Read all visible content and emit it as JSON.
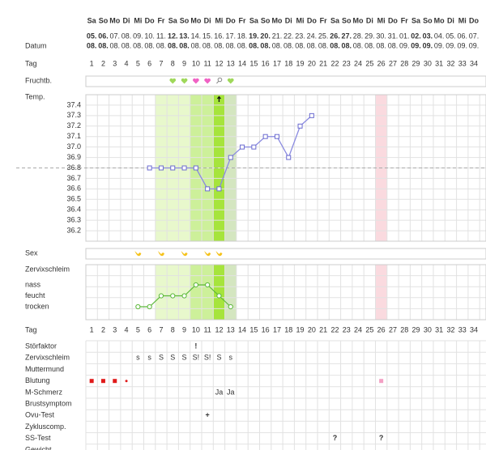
{
  "weekdays": [
    "Sa",
    "So",
    "Mo",
    "Di",
    "Mi",
    "Do",
    "Fr",
    "Sa",
    "So",
    "Mo",
    "Di",
    "Mi",
    "Do",
    "Fr",
    "Sa",
    "So",
    "Mo",
    "Di",
    "Mi",
    "Do",
    "Fr",
    "Sa",
    "So",
    "Mo",
    "Di",
    "Mi",
    "Do",
    "Fr",
    "Sa",
    "So",
    "Mo",
    "Di",
    "Mi",
    "Do"
  ],
  "date_days": [
    "05.",
    "06.",
    "07.",
    "08.",
    "09.",
    "10.",
    "11.",
    "12.",
    "13.",
    "14.",
    "15.",
    "16.",
    "17.",
    "18.",
    "19.",
    "20.",
    "21.",
    "22.",
    "23.",
    "24.",
    "25.",
    "26.",
    "27.",
    "28.",
    "29.",
    "30.",
    "31.",
    "01.",
    "02.",
    "03.",
    "04.",
    "05.",
    "06.",
    "07."
  ],
  "date_months": [
    "08.",
    "08.",
    "08.",
    "08.",
    "08.",
    "08.",
    "08.",
    "08.",
    "08.",
    "08.",
    "08.",
    "08.",
    "08.",
    "08.",
    "08.",
    "08.",
    "08.",
    "08.",
    "08.",
    "08.",
    "08.",
    "08.",
    "08.",
    "08.",
    "08.",
    "08.",
    "08.",
    "09.",
    "09.",
    "09.",
    "09.",
    "09.",
    "09.",
    "09."
  ],
  "day_numbers": [
    1,
    2,
    3,
    4,
    5,
    6,
    7,
    8,
    9,
    10,
    11,
    12,
    13,
    14,
    15,
    16,
    17,
    18,
    19,
    20,
    21,
    22,
    23,
    24,
    25,
    26,
    27,
    28,
    29,
    30,
    31,
    32,
    33,
    34
  ],
  "row_labels": [
    "Datum",
    "Tag",
    "Fruchtb.",
    "Temp.",
    "Sex",
    "Zervixschleim",
    "Tag"
  ],
  "fertility_icons": [
    {
      "day": 8,
      "icon": "heart",
      "color": "#9fd85a"
    },
    {
      "day": 9,
      "icon": "heart",
      "color": "#9fd85a"
    },
    {
      "day": 10,
      "icon": "heart",
      "color": "#f062c4"
    },
    {
      "day": 11,
      "icon": "heart",
      "color": "#f062c4"
    },
    {
      "day": 12,
      "icon": "magnifier",
      "color": "#888888"
    },
    {
      "day": 13,
      "icon": "heart",
      "color": "#9fd85a"
    }
  ],
  "highlight_days": [
    {
      "day": 7,
      "color": "#e8f8cc"
    },
    {
      "day": 8,
      "color": "#e8f8cc"
    },
    {
      "day": 9,
      "color": "#e8f8cc"
    },
    {
      "day": 10,
      "color": "#cdf09a"
    },
    {
      "day": 11,
      "color": "#cdf09a"
    },
    {
      "day": 12,
      "color": "#a6e43c"
    },
    {
      "day": 13,
      "color": "#d4e6c0"
    },
    {
      "day": 26,
      "color": "#fadadf"
    }
  ],
  "temperature": {
    "ylim": [
      36.1,
      37.5
    ],
    "yticks": [
      37.4,
      37.3,
      37.2,
      37.1,
      {
        "value": 37,
        "label": "37.0"
      },
      36.9,
      36.8,
      36.7,
      36.6,
      36.5,
      36.4,
      36.3,
      36.2
    ],
    "coverline": 36.8,
    "color": "#8a8ae0",
    "values": [
      null,
      null,
      null,
      null,
      null,
      36.8,
      36.8,
      36.8,
      36.8,
      36.8,
      36.6,
      36.6,
      36.9,
      37.0,
      37.0,
      37.1,
      37.1,
      36.9,
      37.2,
      37.3,
      null,
      null,
      null,
      null,
      null,
      null,
      null,
      null,
      null,
      null,
      null,
      null,
      null,
      null
    ]
  },
  "sex_days": [
    5,
    7,
    9,
    11,
    12
  ],
  "cervical": {
    "levels": [
      "trocken",
      "feucht",
      "nass"
    ],
    "color": "#5cb83a",
    "values": [
      null,
      null,
      null,
      null,
      0,
      0,
      1,
      1,
      1,
      2,
      2,
      1,
      0,
      null,
      null,
      null,
      null,
      null,
      null,
      null,
      null,
      null,
      null,
      null,
      null,
      null,
      null,
      null,
      null,
      null,
      null,
      null,
      null,
      null
    ]
  },
  "table": {
    "rows": [
      {
        "label": "Störfaktor",
        "color": "#e01b1b",
        "cells": [
          {
            "day": 10,
            "text": "!"
          }
        ]
      },
      {
        "label": "Zervixschleim",
        "color": "#333333",
        "cells": [
          {
            "day": 5,
            "text": "s"
          },
          {
            "day": 6,
            "text": "s"
          },
          {
            "day": 7,
            "text": "S"
          },
          {
            "day": 8,
            "text": "S"
          },
          {
            "day": 9,
            "text": "S"
          },
          {
            "day": 10,
            "text": "S!"
          },
          {
            "day": 11,
            "text": "S!"
          },
          {
            "day": 12,
            "text": "S"
          },
          {
            "day": 13,
            "text": "s"
          }
        ]
      },
      {
        "label": "Muttermund",
        "cells": []
      },
      {
        "label": "Blutung",
        "cells": []
      },
      {
        "label": "M-Schmerz",
        "color": "#333333",
        "cells": [
          {
            "day": 12,
            "text": "Ja"
          },
          {
            "day": 13,
            "text": "Ja"
          }
        ]
      },
      {
        "label": "Brustsymptom",
        "cells": []
      },
      {
        "label": "Ovu-Test",
        "color": "#e01b1b",
        "cells": [
          {
            "day": 11,
            "text": "+"
          }
        ]
      },
      {
        "label": "Zykluscomp.",
        "cells": []
      },
      {
        "label": "SS-Test",
        "color": "#f28ccc",
        "cells": [
          {
            "day": 22,
            "text": "?"
          },
          {
            "day": 26,
            "text": "?"
          }
        ]
      },
      {
        "label": "Gewicht",
        "cells": []
      }
    ],
    "symbols": [
      {
        "row": 3,
        "day": 1,
        "shape": "square",
        "color": "#e01b1b"
      },
      {
        "row": 3,
        "day": 2,
        "shape": "square",
        "color": "#e01b1b"
      },
      {
        "row": 3,
        "day": 3,
        "shape": "square",
        "color": "#e01b1b"
      },
      {
        "row": 3,
        "day": 4,
        "shape": "dot",
        "color": "#e01b1b"
      },
      {
        "row": 3,
        "day": 26,
        "shape": "square",
        "color": "#f3a0c4"
      }
    ]
  }
}
